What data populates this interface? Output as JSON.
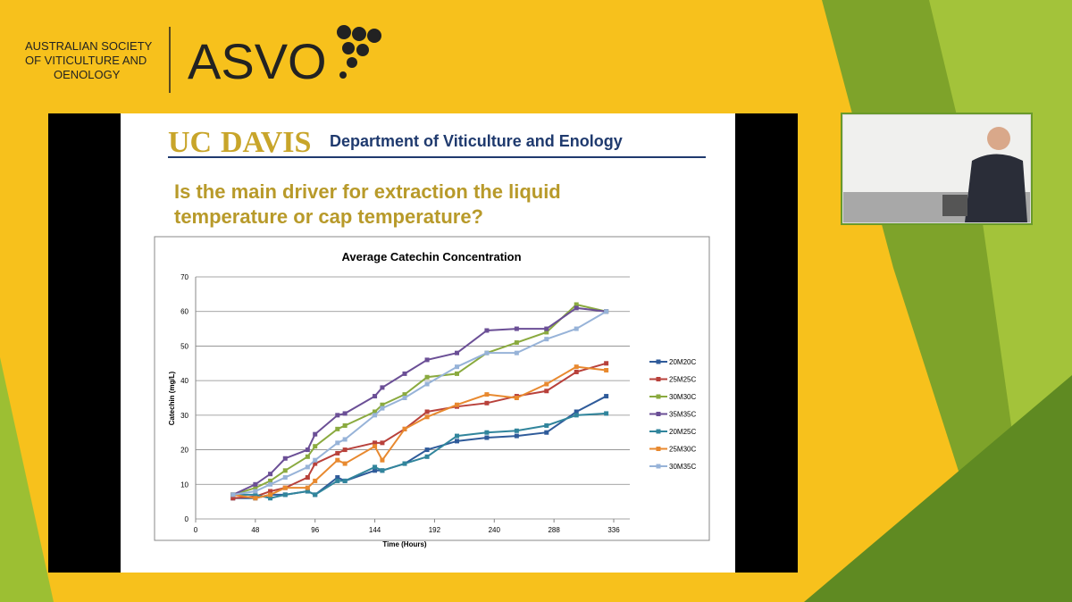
{
  "header": {
    "org": [
      "AUSTRALIAN SOCIETY",
      "OF VITICULTURE AND",
      "OENOLOGY"
    ],
    "logo": "ASVO"
  },
  "slide": {
    "uc": "UC",
    "davis": "DAVIS",
    "department": "Department of Viticulture and Enology",
    "question": [
      "Is the main driver for extraction the liquid",
      "temperature or cap temperature?"
    ]
  },
  "chart_data": {
    "type": "line",
    "title": "Average Catechin Concentration",
    "xlabel": "Time (Hours)",
    "ylabel": "Catechin (mg/L)",
    "x": [
      30,
      48,
      60,
      72,
      90,
      96,
      114,
      120,
      144,
      150,
      168,
      186,
      210,
      234,
      258,
      282,
      306,
      330
    ],
    "xlim": [
      0,
      336
    ],
    "xticks": [
      0,
      48,
      96,
      144,
      192,
      240,
      288,
      336
    ],
    "ylim": [
      0,
      70
    ],
    "yticks": [
      0,
      10,
      20,
      30,
      40,
      50,
      60,
      70
    ],
    "grid": true,
    "series": [
      {
        "name": "20M20C",
        "color": "#2f5b9a",
        "values": [
          6,
          6,
          7,
          7,
          8,
          7,
          12,
          11,
          14,
          14,
          16,
          20,
          22.5,
          23.5,
          24,
          25,
          31,
          35.5
        ]
      },
      {
        "name": "25M25C",
        "color": "#b8413b",
        "values": [
          6,
          6.5,
          8,
          9,
          12,
          16,
          19,
          20,
          22,
          22,
          26,
          31,
          32.5,
          33.5,
          35.5,
          37,
          42.5,
          45
        ]
      },
      {
        "name": "30M30C",
        "color": "#8aaa3f",
        "values": [
          7,
          9,
          11,
          14,
          18,
          21,
          26,
          27,
          31,
          33,
          36,
          41,
          42,
          48,
          51,
          54,
          62,
          60
        ]
      },
      {
        "name": "35M35C",
        "color": "#6b4f96",
        "values": [
          7,
          10,
          13,
          17.5,
          20,
          24.5,
          30,
          30.5,
          35.5,
          38,
          42,
          46,
          48,
          54.5,
          55,
          55,
          61,
          60
        ]
      },
      {
        "name": "20M25C",
        "color": "#31859c",
        "values": [
          7,
          7,
          6,
          7,
          8,
          7,
          11,
          11,
          15,
          14,
          16,
          18,
          24,
          25,
          25.5,
          27,
          30,
          30.5
        ]
      },
      {
        "name": "25M30C",
        "color": "#e8892f",
        "values": [
          7,
          6,
          7,
          9,
          9,
          11,
          17,
          16,
          21,
          17,
          26,
          29.5,
          33,
          36,
          35,
          39,
          44,
          43
        ]
      },
      {
        "name": "30M35C",
        "color": "#97b3d8",
        "values": [
          7,
          8,
          10,
          12,
          15,
          17,
          22,
          23,
          30,
          32,
          35,
          39,
          44,
          48,
          48,
          52,
          55,
          60
        ]
      }
    ]
  }
}
